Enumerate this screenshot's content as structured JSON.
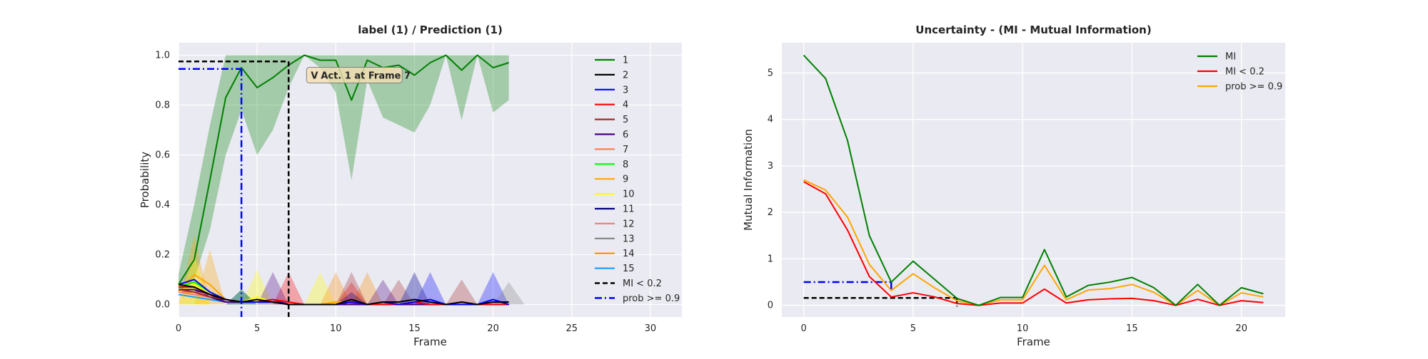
{
  "chart_data": [
    {
      "type": "line",
      "title": "label (1) / Prediction (1)",
      "xlabel": "Frame",
      "ylabel": "Probability",
      "xlim": [
        0,
        32
      ],
      "ylim": [
        -0.05,
        1.05
      ],
      "xticks": [
        0,
        5,
        10,
        15,
        20,
        25,
        30
      ],
      "yticks": [
        0.0,
        0.2,
        0.4,
        0.6,
        0.8,
        1.0
      ],
      "ytick_labels": [
        "0.0",
        "0.2",
        "0.4",
        "0.6",
        "0.8",
        "1.0"
      ],
      "grid": true,
      "legend_position": "right",
      "x": [
        0,
        1,
        2,
        3,
        4,
        5,
        6,
        7,
        8,
        9,
        10,
        11,
        12,
        13,
        14,
        15,
        16,
        17,
        18,
        19,
        20,
        21
      ],
      "series": [
        {
          "name": "1",
          "color": "#008000",
          "values": [
            0.08,
            0.18,
            0.5,
            0.83,
            0.95,
            0.87,
            0.91,
            0.96,
            1.0,
            0.98,
            0.98,
            0.82,
            0.98,
            0.95,
            0.96,
            0.92,
            0.97,
            1.0,
            0.94,
            1.0,
            0.95,
            0.97
          ],
          "band_low": [
            0.05,
            0.1,
            0.3,
            0.6,
            0.78,
            0.6,
            0.7,
            0.87,
            1.0,
            0.95,
            0.85,
            0.5,
            0.9,
            0.75,
            0.72,
            0.69,
            0.8,
            1.0,
            0.74,
            1.0,
            0.77,
            0.82
          ],
          "band_high": [
            0.12,
            0.4,
            0.72,
            1.0,
            1.0,
            1.0,
            1.0,
            1.0,
            1.0,
            1.0,
            1.0,
            1.0,
            1.0,
            1.0,
            1.0,
            1.0,
            1.0,
            1.0,
            1.0,
            1.0,
            1.0,
            1.0
          ]
        },
        {
          "name": "2",
          "color": "#000000",
          "values": [
            0.08,
            0.07,
            0.04,
            0.02,
            0.01,
            0.02,
            0.01,
            0.0,
            0.0,
            0.0,
            0.0,
            0.02,
            0.0,
            0.01,
            0.01,
            0.02,
            0.01,
            0.0,
            0.01,
            0.0,
            0.01,
            0.01
          ]
        },
        {
          "name": "3",
          "color": "#0000ff",
          "values": [
            0.08,
            0.1,
            0.05,
            0.02,
            0.01,
            0.01,
            0.01,
            0.0,
            0.0,
            0.0,
            0.0,
            0.01,
            0.0,
            0.01,
            0.0,
            0.01,
            0.02,
            0.0,
            0.0,
            0.0,
            0.02,
            0.0
          ]
        },
        {
          "name": "4",
          "color": "#ff0000",
          "values": [
            0.07,
            0.07,
            0.04,
            0.02,
            0.01,
            0.01,
            0.02,
            0.01,
            0.0,
            0.0,
            0.0,
            0.01,
            0.0,
            0.0,
            0.0,
            0.01,
            0.0,
            0.0,
            0.0,
            0.0,
            0.0,
            0.0
          ]
        },
        {
          "name": "5",
          "color": "#a52a2a",
          "values": [
            0.06,
            0.05,
            0.03,
            0.02,
            0.01,
            0.01,
            0.01,
            0.0,
            0.0,
            0.0,
            0.0,
            0.01,
            0.0,
            0.0,
            0.0,
            0.01,
            0.0,
            0.0,
            0.01,
            0.0,
            0.0,
            0.0
          ]
        },
        {
          "name": "6",
          "color": "#4b0082",
          "values": [
            0.06,
            0.06,
            0.04,
            0.01,
            0.01,
            0.01,
            0.02,
            0.0,
            0.0,
            0.0,
            0.0,
            0.0,
            0.0,
            0.0,
            0.0,
            0.0,
            0.0,
            0.0,
            0.0,
            0.0,
            0.0,
            0.0
          ]
        },
        {
          "name": "7",
          "color": "#ff7f50",
          "values": [
            0.06,
            0.05,
            0.04,
            0.02,
            0.01,
            0.01,
            0.01,
            0.0,
            0.0,
            0.0,
            0.0,
            0.0,
            0.0,
            0.0,
            0.0,
            0.0,
            0.0,
            0.0,
            0.0,
            0.0,
            0.0,
            0.0
          ]
        },
        {
          "name": "8",
          "color": "#00ff00",
          "values": [
            0.07,
            0.09,
            0.05,
            0.02,
            0.01,
            0.01,
            0.01,
            0.0,
            0.0,
            0.0,
            0.0,
            0.0,
            0.0,
            0.0,
            0.0,
            0.0,
            0.0,
            0.0,
            0.0,
            0.0,
            0.0,
            0.0
          ]
        },
        {
          "name": "9",
          "color": "#ffa500",
          "values": [
            0.05,
            0.12,
            0.08,
            0.02,
            0.01,
            0.02,
            0.01,
            0.0,
            0.0,
            0.0,
            0.01,
            0.01,
            0.0,
            0.0,
            0.0,
            0.0,
            0.0,
            0.0,
            0.0,
            0.0,
            0.0,
            0.0
          ]
        },
        {
          "name": "10",
          "color": "#ffff00",
          "values": [
            0.05,
            0.08,
            0.04,
            0.02,
            0.01,
            0.03,
            0.01,
            0.0,
            0.0,
            0.0,
            0.01,
            0.0,
            0.0,
            0.0,
            0.0,
            0.0,
            0.0,
            0.0,
            0.0,
            0.0,
            0.0,
            0.0
          ]
        },
        {
          "name": "11",
          "color": "#000080",
          "values": [
            0.06,
            0.06,
            0.03,
            0.01,
            0.01,
            0.01,
            0.01,
            0.0,
            0.0,
            0.0,
            0.0,
            0.0,
            0.0,
            0.0,
            0.0,
            0.0,
            0.0,
            0.0,
            0.0,
            0.0,
            0.0,
            0.0
          ]
        },
        {
          "name": "12",
          "color": "#f08080",
          "values": [
            0.05,
            0.04,
            0.03,
            0.01,
            0.01,
            0.01,
            0.01,
            0.0,
            0.0,
            0.0,
            0.0,
            0.0,
            0.0,
            0.0,
            0.0,
            0.0,
            0.0,
            0.0,
            0.0,
            0.0,
            0.0,
            0.0
          ]
        },
        {
          "name": "13",
          "color": "#808080",
          "values": [
            0.05,
            0.04,
            0.03,
            0.01,
            0.01,
            0.01,
            0.01,
            0.0,
            0.0,
            0.0,
            0.0,
            0.0,
            0.0,
            0.0,
            0.0,
            0.0,
            0.0,
            0.0,
            0.0,
            0.0,
            0.0,
            0.0
          ]
        },
        {
          "name": "14",
          "color": "#ff8c00",
          "values": [
            0.05,
            0.05,
            0.03,
            0.01,
            0.01,
            0.01,
            0.01,
            0.0,
            0.0,
            0.0,
            0.01,
            0.01,
            0.0,
            0.0,
            0.0,
            0.0,
            0.0,
            0.0,
            0.0,
            0.0,
            0.0,
            0.0
          ]
        },
        {
          "name": "15",
          "color": "#1ea0ff",
          "values": [
            0.04,
            0.03,
            0.02,
            0.01,
            0.01,
            0.01,
            0.01,
            0.0,
            0.0,
            0.0,
            0.0,
            0.0,
            0.0,
            0.0,
            0.0,
            0.0,
            0.0,
            0.0,
            0.0,
            0.0,
            0.0,
            0.0
          ]
        }
      ],
      "bands_minor": [
        {
          "color": "#ffa500",
          "peaks": [
            [
              1,
              0.28
            ],
            [
              2,
              0.22
            ]
          ]
        },
        {
          "color": "#ffff00",
          "peaks": [
            [
              1,
              0.2
            ],
            [
              5,
              0.14
            ],
            [
              9,
              0.13
            ]
          ]
        },
        {
          "color": "#ff8c00",
          "peaks": [
            [
              10,
              0.13
            ],
            [
              12,
              0.13
            ]
          ]
        },
        {
          "color": "#ff0000",
          "peaks": [
            [
              7,
              0.13
            ],
            [
              11,
              0.09
            ]
          ]
        },
        {
          "color": "#a52a2a",
          "peaks": [
            [
              11,
              0.13
            ],
            [
              14,
              0.1
            ],
            [
              18,
              0.1
            ]
          ]
        },
        {
          "color": "#4b0082",
          "peaks": [
            [
              6,
              0.13
            ],
            [
              13,
              0.1
            ]
          ]
        },
        {
          "color": "#0000ff",
          "peaks": [
            [
              15,
              0.13
            ],
            [
              16,
              0.13
            ],
            [
              20,
              0.13
            ]
          ]
        },
        {
          "color": "#808080",
          "peaks": [
            [
              15,
              0.13
            ],
            [
              21,
              0.09
            ]
          ]
        },
        {
          "color": "#00ff00",
          "peaks": [
            [
              4,
              0.06
            ]
          ]
        },
        {
          "color": "#000080",
          "peaks": [
            [
              4,
              0.06
            ],
            [
              11,
              0.05
            ]
          ]
        }
      ],
      "markers": [
        {
          "name": "MI < 0.2",
          "color": "#000000",
          "style": "dashed",
          "x": 7,
          "y": 0.975
        },
        {
          "name": "prob >= 0.9",
          "color": "#0000ff",
          "style": "dashdot",
          "x": 4,
          "y": 0.945
        }
      ],
      "annotation": {
        "text": "Act. 1 at Frame 7",
        "prefix": "V",
        "x": 10.5,
        "y": 0.92
      }
    },
    {
      "type": "line",
      "title": "Uncertainty - (MI - Mutual Information)",
      "xlabel": "Frame",
      "ylabel": "Mutual Information",
      "xlim": [
        -1,
        22
      ],
      "ylim": [
        -0.25,
        5.65
      ],
      "xticks": [
        0,
        5,
        10,
        15,
        20
      ],
      "yticks": [
        0,
        1,
        2,
        3,
        4,
        5
      ],
      "grid": true,
      "legend_position": "top-right",
      "x": [
        0,
        1,
        2,
        3,
        4,
        5,
        6,
        7,
        8,
        9,
        10,
        11,
        12,
        13,
        14,
        15,
        16,
        17,
        18,
        19,
        20,
        21
      ],
      "series": [
        {
          "name": "MI",
          "color": "#008000",
          "values": [
            5.38,
            4.88,
            3.55,
            1.5,
            0.5,
            0.95,
            0.55,
            0.15,
            0.0,
            0.17,
            0.17,
            1.2,
            0.18,
            0.43,
            0.5,
            0.6,
            0.38,
            0.0,
            0.45,
            0.0,
            0.38,
            0.25
          ]
        },
        {
          "name": "MI < 0.2",
          "color": "#ff0000",
          "values": [
            2.66,
            2.4,
            1.62,
            0.62,
            0.18,
            0.27,
            0.18,
            0.04,
            0.0,
            0.05,
            0.05,
            0.35,
            0.05,
            0.12,
            0.14,
            0.15,
            0.1,
            0.0,
            0.13,
            0.0,
            0.1,
            0.06
          ]
        },
        {
          "name": "prob >= 0.9",
          "color": "#ffa500",
          "values": [
            2.7,
            2.48,
            1.9,
            0.88,
            0.32,
            0.68,
            0.37,
            0.1,
            0.0,
            0.12,
            0.12,
            0.86,
            0.12,
            0.33,
            0.36,
            0.45,
            0.28,
            0.0,
            0.32,
            0.0,
            0.27,
            0.18
          ]
        }
      ],
      "markers": [
        {
          "color": "#000000",
          "style": "dashed",
          "x": 7,
          "y": 0.16
        },
        {
          "color": "#0000ff",
          "style": "dashdot",
          "x": 4,
          "y": 0.5
        }
      ]
    }
  ]
}
